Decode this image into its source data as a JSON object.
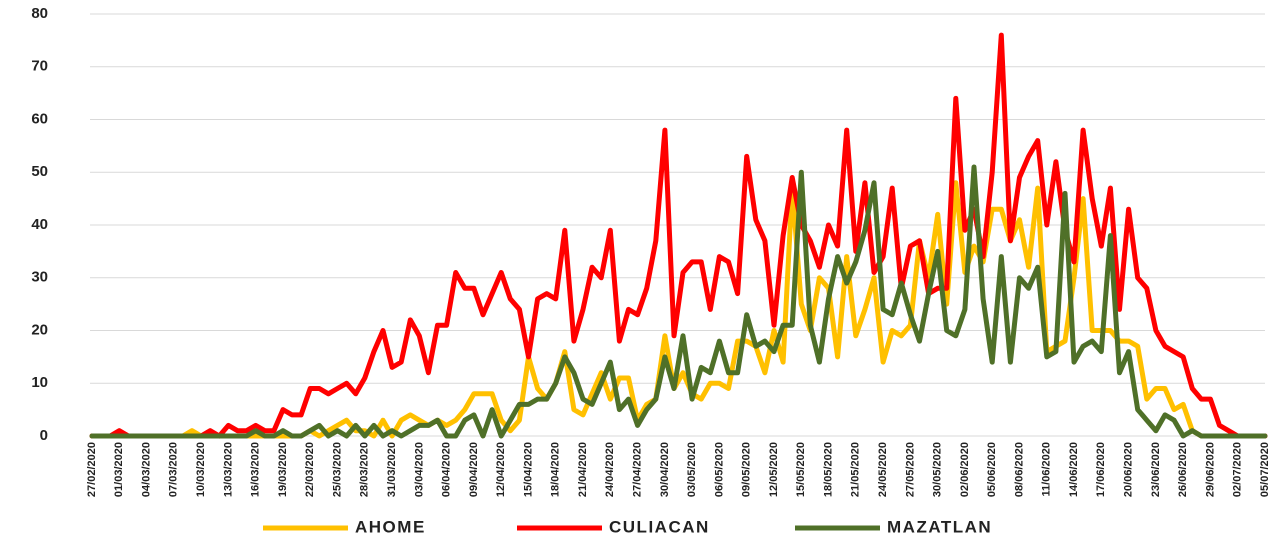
{
  "chart_data": {
    "type": "line",
    "categories": [
      "27/02/2020",
      null,
      null,
      "01/03/2020",
      null,
      null,
      "04/03/2020",
      null,
      null,
      "07/03/2020",
      null,
      null,
      "10/03/2020",
      null,
      null,
      "13/03/2020",
      null,
      null,
      "16/03/2020",
      null,
      null,
      "19/03/2020",
      null,
      null,
      "22/03/2020",
      null,
      null,
      "25/03/2020",
      null,
      null,
      "28/03/2020",
      null,
      null,
      "31/03/2020",
      null,
      null,
      "03/04/2020",
      null,
      null,
      "06/04/2020",
      null,
      null,
      "09/04/2020",
      null,
      null,
      "12/04/2020",
      null,
      null,
      "15/04/2020",
      null,
      null,
      "18/04/2020",
      null,
      null,
      "21/04/2020",
      null,
      null,
      "24/04/2020",
      null,
      null,
      "27/04/2020",
      null,
      null,
      "30/04/2020",
      null,
      null,
      "03/05/2020",
      null,
      null,
      "06/05/2020",
      null,
      null,
      "09/05/2020",
      null,
      null,
      "12/05/2020",
      null,
      null,
      "15/05/2020",
      null,
      null,
      "18/05/2020",
      null,
      null,
      "21/05/2020",
      null,
      null,
      "24/05/2020",
      null,
      null,
      "27/05/2020",
      null,
      null,
      "30/05/2020",
      null,
      null,
      "02/06/2020",
      null,
      null,
      "05/06/2020",
      null,
      null,
      "08/06/2020",
      null,
      null,
      "11/06/2020",
      null,
      null,
      "14/06/2020",
      null,
      null,
      "17/06/2020",
      null,
      null,
      "20/06/2020",
      null,
      null,
      "23/06/2020",
      null,
      null,
      "26/06/2020",
      null,
      null,
      "29/06/2020",
      null,
      null,
      "02/07/2020",
      null,
      null,
      "05/07/2020"
    ],
    "series": [
      {
        "name": "AHOME",
        "color": "#ffc000",
        "values": [
          0,
          0,
          0,
          0,
          0,
          0,
          0,
          0,
          0,
          0,
          0,
          1,
          0,
          0,
          0,
          0,
          0,
          0,
          0,
          0,
          0,
          0,
          0,
          0,
          1,
          0,
          1,
          2,
          3,
          1,
          1,
          0,
          3,
          0,
          3,
          4,
          3,
          2,
          3,
          2,
          3,
          5,
          8,
          8,
          8,
          3,
          1,
          3,
          15,
          9,
          7,
          10,
          16,
          5,
          4,
          8,
          12,
          7,
          11,
          11,
          3,
          6,
          7,
          19,
          9,
          12,
          8,
          7,
          10,
          10,
          9,
          18,
          18,
          17,
          12,
          20,
          14,
          47,
          25,
          20,
          30,
          28,
          15,
          34,
          19,
          24,
          30,
          14,
          20,
          19,
          21,
          37,
          30,
          42,
          25,
          48,
          31,
          36,
          33,
          43,
          43,
          37,
          41,
          32,
          47,
          16,
          17,
          18,
          30,
          45,
          20,
          20,
          20,
          18,
          18,
          17,
          7,
          9,
          9,
          5,
          6,
          1,
          0,
          0,
          0,
          0,
          0,
          0,
          0,
          0
        ]
      },
      {
        "name": "CULIACAN",
        "color": "#ff0000",
        "values": [
          0,
          0,
          0,
          1,
          0,
          0,
          0,
          0,
          0,
          0,
          0,
          0,
          0,
          1,
          0,
          2,
          1,
          1,
          2,
          1,
          1,
          5,
          4,
          4,
          9,
          9,
          8,
          9,
          10,
          8,
          11,
          16,
          20,
          13,
          14,
          22,
          19,
          12,
          21,
          21,
          31,
          28,
          28,
          23,
          27,
          31,
          26,
          24,
          15,
          26,
          27,
          26,
          39,
          18,
          24,
          32,
          30,
          39,
          18,
          24,
          23,
          28,
          37,
          58,
          19,
          31,
          33,
          33,
          24,
          34,
          33,
          27,
          53,
          41,
          37,
          21,
          38,
          49,
          40,
          37,
          32,
          40,
          36,
          58,
          35,
          48,
          31,
          34,
          47,
          28,
          36,
          37,
          27,
          28,
          28,
          64,
          39,
          43,
          34,
          50,
          76,
          37,
          49,
          53,
          56,
          40,
          52,
          39,
          33,
          58,
          45,
          36,
          47,
          24,
          43,
          30,
          28,
          20,
          17,
          16,
          15,
          9,
          7,
          7,
          2,
          1,
          0,
          0,
          0,
          0
        ]
      },
      {
        "name": "MAZATLAN",
        "color": "#4f7028",
        "values": [
          0,
          0,
          0,
          0,
          0,
          0,
          0,
          0,
          0,
          0,
          0,
          0,
          0,
          0,
          0,
          0,
          0,
          0,
          1,
          0,
          0,
          1,
          0,
          0,
          1,
          2,
          0,
          1,
          0,
          2,
          0,
          2,
          0,
          1,
          0,
          1,
          2,
          2,
          3,
          0,
          0,
          3,
          4,
          0,
          5,
          0,
          3,
          6,
          6,
          7,
          7,
          10,
          15,
          12,
          7,
          6,
          10,
          14,
          5,
          7,
          2,
          5,
          7,
          15,
          9,
          19,
          7,
          13,
          12,
          18,
          12,
          12,
          23,
          17,
          18,
          16,
          21,
          21,
          50,
          21,
          14,
          26,
          34,
          29,
          33,
          39,
          48,
          24,
          23,
          29,
          23,
          18,
          27,
          35,
          20,
          19,
          24,
          51,
          26,
          14,
          34,
          14,
          30,
          28,
          32,
          15,
          16,
          46,
          14,
          17,
          18,
          16,
          38,
          12,
          16,
          5,
          3,
          1,
          4,
          3,
          0,
          1,
          0,
          0,
          0,
          0,
          0,
          0,
          0,
          0
        ]
      }
    ],
    "ylim": [
      0,
      80
    ],
    "yticks": [
      0,
      10,
      20,
      30,
      40,
      50,
      60,
      70,
      80
    ],
    "grid": true,
    "legend": "bottom"
  }
}
